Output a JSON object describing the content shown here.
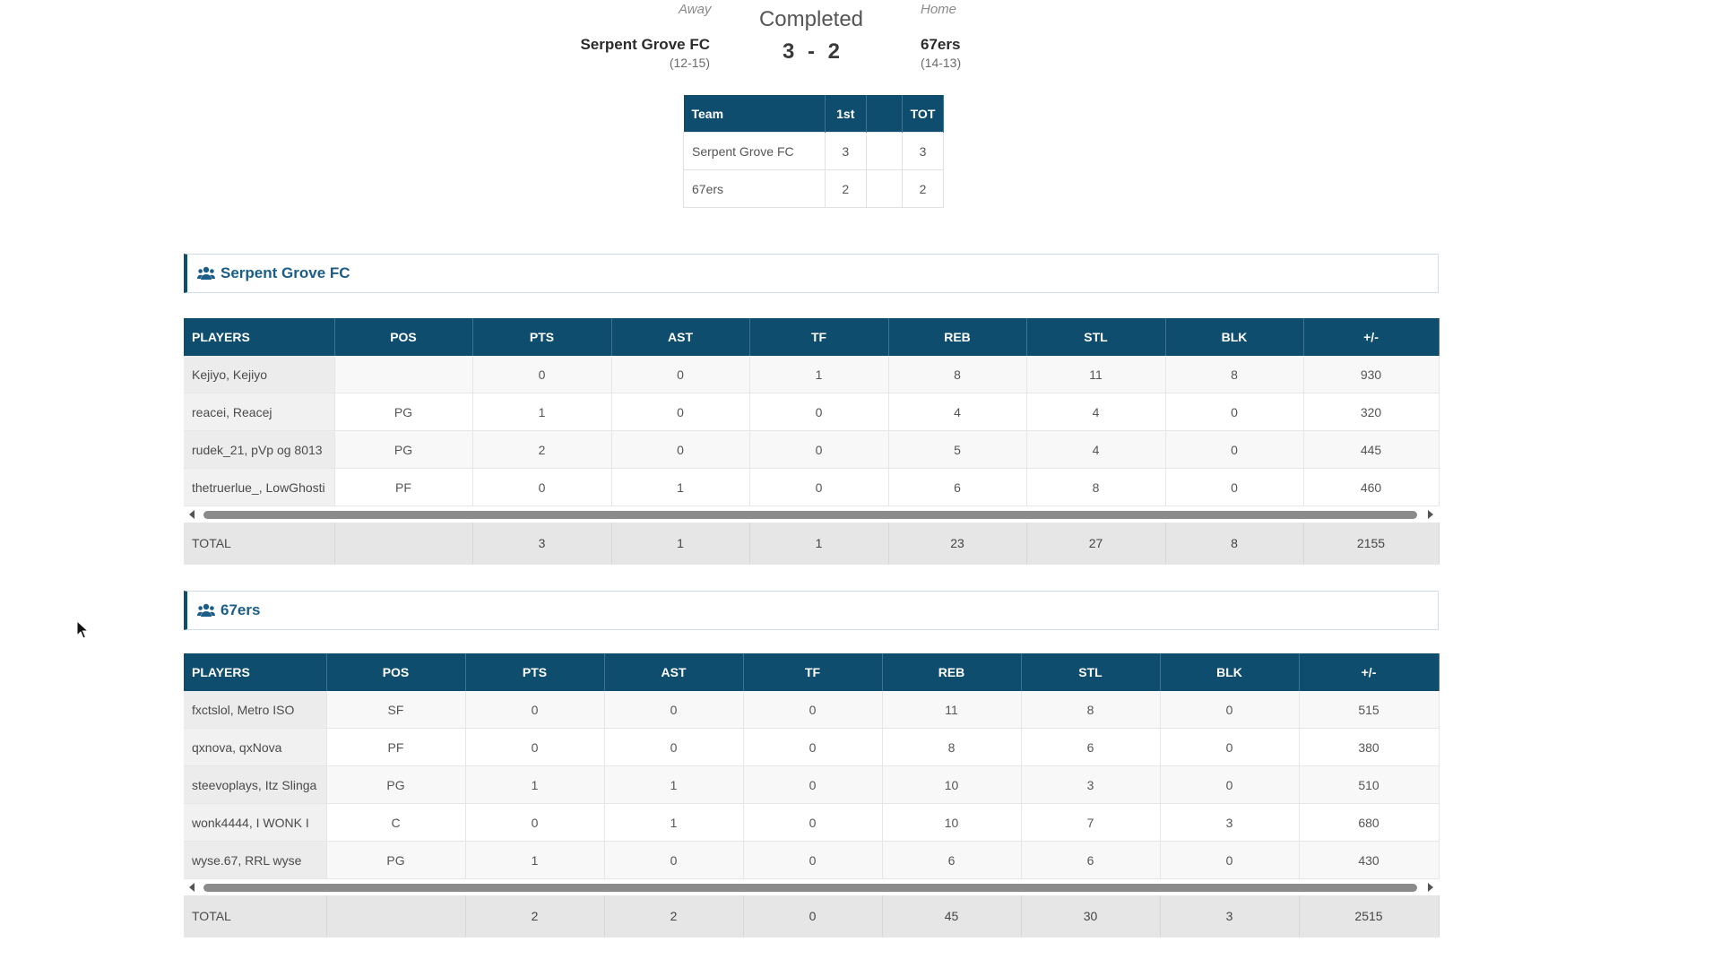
{
  "game": {
    "status": "Completed",
    "away_label": "Away",
    "home_label": "Home",
    "away_team": "Serpent Grove FC",
    "away_record": "(12-15)",
    "home_team": "67ers",
    "home_record": "(14-13)",
    "away_score": "3",
    "score_sep": "-",
    "home_score": "2"
  },
  "linescore": {
    "headers": [
      "Team",
      "1st",
      "",
      "TOT"
    ],
    "rows": [
      [
        "Serpent Grove FC",
        "3",
        "",
        "3"
      ],
      [
        "67ers",
        "2",
        "",
        "2"
      ]
    ]
  },
  "teams": [
    {
      "name": "Serpent Grove FC",
      "icon": "users-icon",
      "headers": [
        "PLAYERS",
        "POS",
        "PTS",
        "AST",
        "TF",
        "REB",
        "STL",
        "BLK",
        "+/-"
      ],
      "rows": [
        [
          "Kejiyo, Kejiyo",
          "",
          "0",
          "0",
          "1",
          "8",
          "11",
          "8",
          "930"
        ],
        [
          "reacei, Reacej",
          "PG",
          "1",
          "0",
          "0",
          "4",
          "4",
          "0",
          "320"
        ],
        [
          "rudek_21, pVp og 8013",
          "PG",
          "2",
          "0",
          "0",
          "5",
          "4",
          "0",
          "445"
        ],
        [
          "thetruerlue_, LowGhosti",
          "PF",
          "0",
          "1",
          "0",
          "6",
          "8",
          "0",
          "460"
        ]
      ],
      "total": [
        "TOTAL",
        "",
        "3",
        "1",
        "1",
        "23",
        "27",
        "8",
        "2155"
      ]
    },
    {
      "name": "67ers",
      "icon": "users-icon",
      "headers": [
        "PLAYERS",
        "POS",
        "PTS",
        "AST",
        "TF",
        "REB",
        "STL",
        "BLK",
        "+/-"
      ],
      "rows": [
        [
          "fxctslol, Metro ISO",
          "SF",
          "0",
          "0",
          "0",
          "11",
          "8",
          "0",
          "515"
        ],
        [
          "qxnova, qxNova",
          "PF",
          "0",
          "0",
          "0",
          "8",
          "6",
          "0",
          "380"
        ],
        [
          "steevoplays, Itz Slinga",
          "PG",
          "1",
          "1",
          "0",
          "10",
          "3",
          "0",
          "510"
        ],
        [
          "wonk4444, I WONK I",
          "C",
          "0",
          "1",
          "0",
          "10",
          "7",
          "3",
          "680"
        ],
        [
          "wyse.67, RRL wyse",
          "PG",
          "1",
          "0",
          "0",
          "6",
          "6",
          "0",
          "430"
        ]
      ],
      "total": [
        "TOTAL",
        "",
        "2",
        "2",
        "0",
        "45",
        "30",
        "3",
        "2515"
      ]
    }
  ],
  "colors": {
    "header_bg": "#0e4d6e",
    "team_link": "#1b5d87"
  }
}
